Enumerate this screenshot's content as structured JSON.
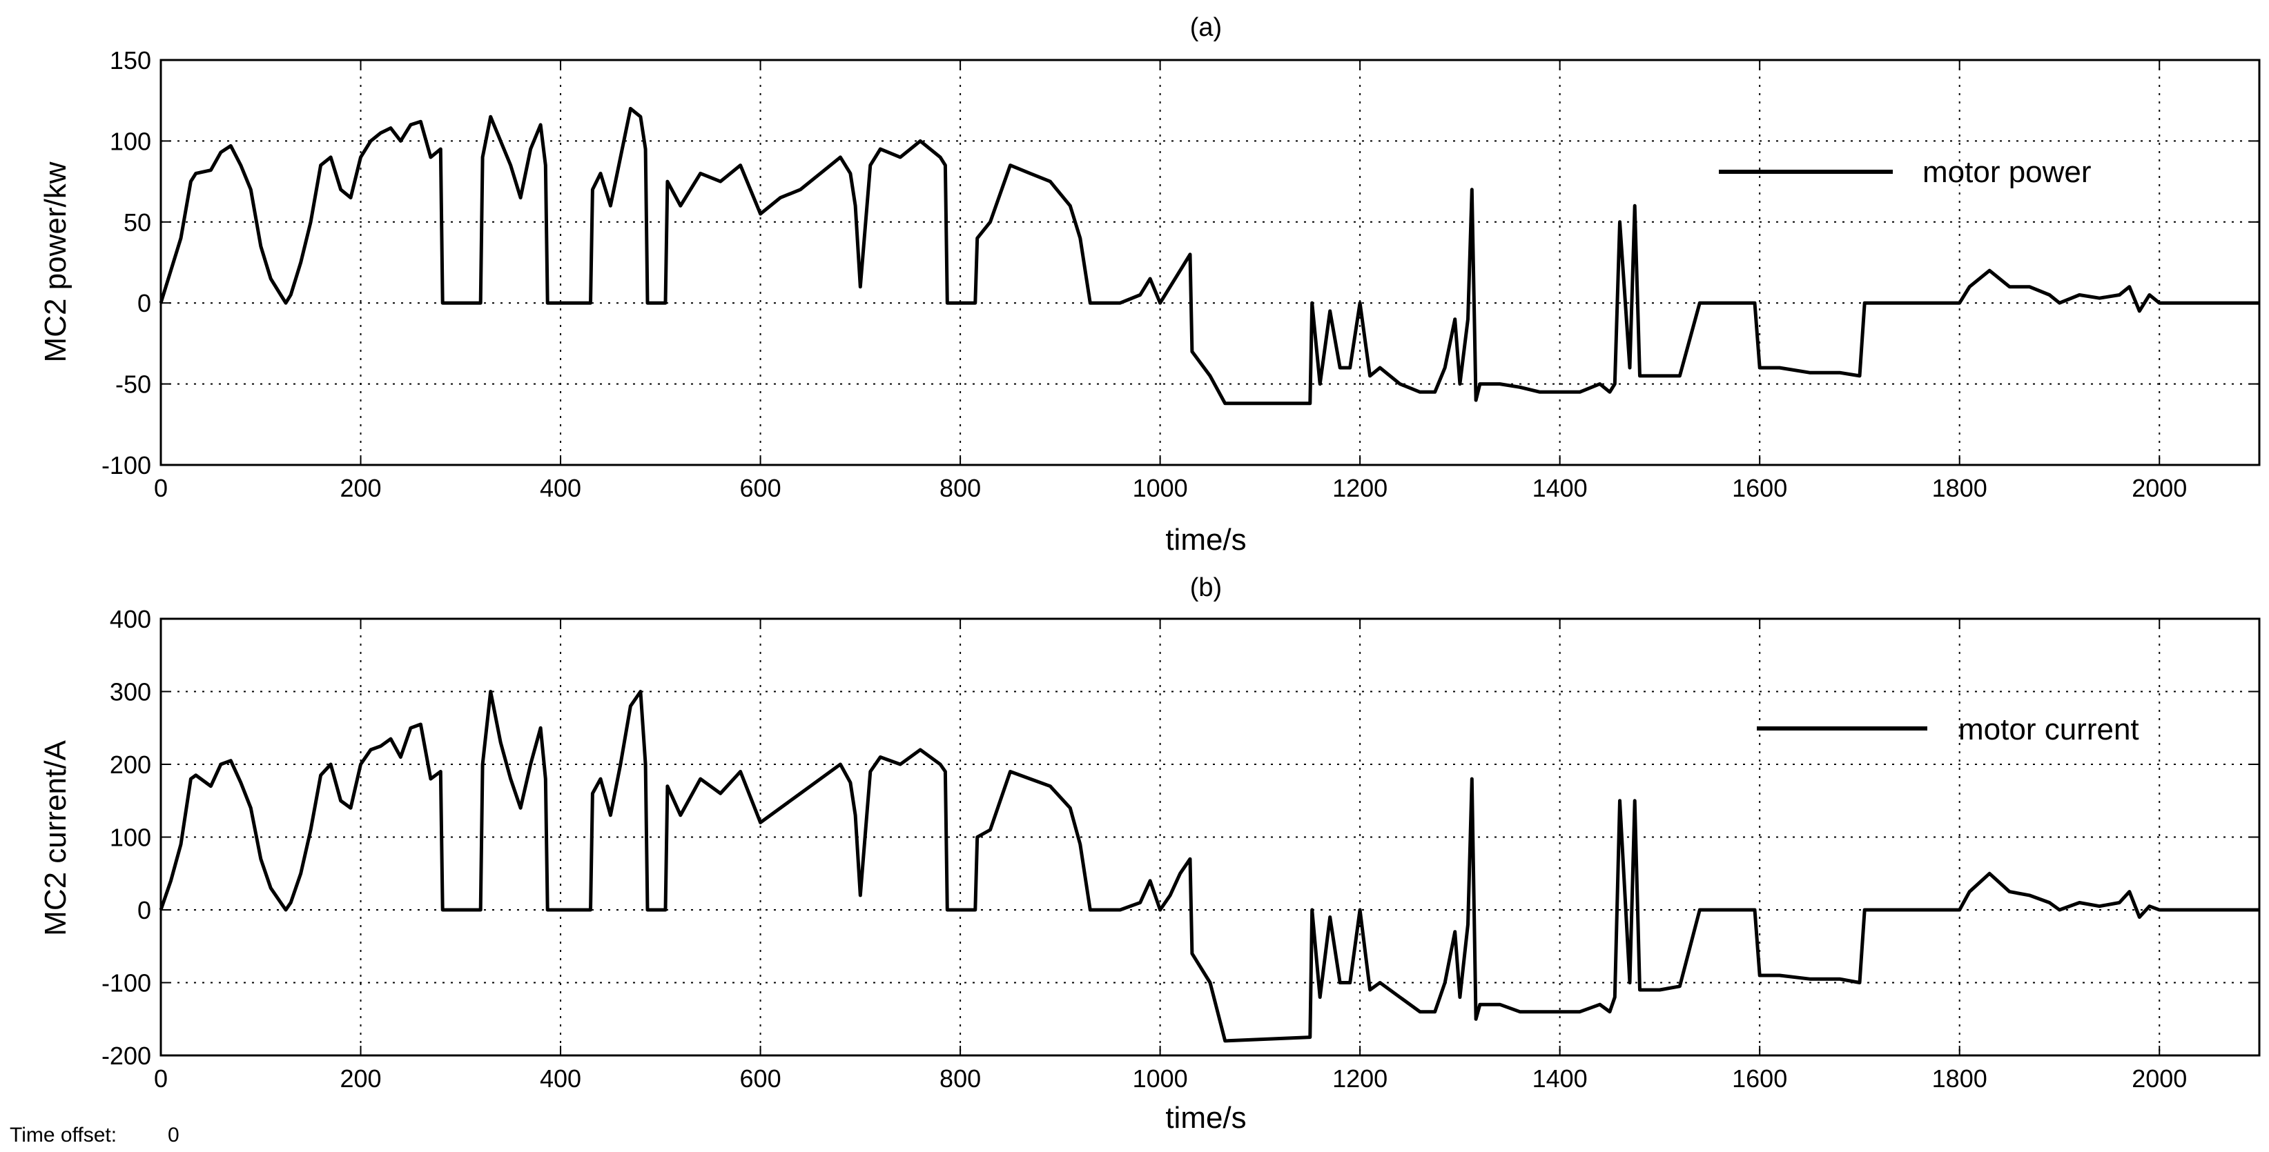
{
  "window": {
    "time_offset_label": "Time offset:",
    "time_offset_value": "0"
  },
  "colors": {
    "background": "#ffffff",
    "axes": "#000000",
    "grid": "#000000",
    "line": "#000000"
  },
  "chart_data": [
    {
      "type": "line",
      "title": "(a)",
      "xlabel": "time/s",
      "ylabel": "MC2 power/kw",
      "xlim": [
        0,
        2100
      ],
      "ylim": [
        -100,
        150
      ],
      "xticks": [
        0,
        200,
        400,
        600,
        800,
        1000,
        1200,
        1400,
        1600,
        1800,
        2000
      ],
      "yticks": [
        -100,
        -50,
        0,
        50,
        100,
        150
      ],
      "grid": true,
      "legend_position": "top-right",
      "series": [
        {
          "name": "motor power",
          "x": [
            0,
            10,
            20,
            30,
            35,
            50,
            60,
            70,
            80,
            90,
            100,
            110,
            120,
            125,
            130,
            140,
            150,
            160,
            170,
            180,
            190,
            200,
            210,
            220,
            230,
            240,
            250,
            260,
            270,
            280,
            282,
            320,
            322,
            330,
            340,
            350,
            360,
            370,
            380,
            385,
            387,
            430,
            432,
            440,
            450,
            460,
            470,
            480,
            485,
            487,
            505,
            507,
            520,
            540,
            560,
            580,
            600,
            620,
            640,
            660,
            680,
            690,
            695,
            700,
            710,
            720,
            740,
            760,
            780,
            785,
            787,
            815,
            817,
            830,
            850,
            870,
            890,
            910,
            920,
            930,
            940,
            960,
            980,
            990,
            1000,
            1010,
            1020,
            1030,
            1032,
            1050,
            1065,
            1150,
            1152,
            1160,
            1170,
            1180,
            1190,
            1200,
            1210,
            1220,
            1240,
            1260,
            1275,
            1285,
            1295,
            1300,
            1308,
            1312,
            1316,
            1320,
            1340,
            1360,
            1380,
            1400,
            1420,
            1440,
            1450,
            1455,
            1460,
            1470,
            1475,
            1480,
            1500,
            1520,
            1540,
            1548,
            1595,
            1600,
            1620,
            1650,
            1680,
            1700,
            1705,
            1800,
            1810,
            1830,
            1850,
            1870,
            1890,
            1900,
            1920,
            1940,
            1960,
            1970,
            1980,
            1990,
            2000,
            2100
          ],
          "y": [
            0,
            20,
            40,
            75,
            80,
            82,
            93,
            97,
            85,
            70,
            35,
            15,
            5,
            0,
            5,
            25,
            50,
            85,
            90,
            70,
            65,
            90,
            100,
            105,
            108,
            100,
            110,
            112,
            90,
            95,
            0,
            0,
            90,
            115,
            100,
            85,
            65,
            95,
            110,
            85,
            0,
            0,
            70,
            80,
            60,
            90,
            120,
            115,
            95,
            0,
            0,
            75,
            60,
            80,
            75,
            85,
            55,
            65,
            70,
            80,
            90,
            80,
            60,
            10,
            85,
            95,
            90,
            100,
            90,
            85,
            0,
            0,
            40,
            50,
            85,
            80,
            75,
            60,
            40,
            0,
            0,
            0,
            5,
            15,
            0,
            10,
            20,
            30,
            -30,
            -45,
            -62,
            -62,
            0,
            -50,
            -5,
            -40,
            -40,
            0,
            -45,
            -40,
            -50,
            -55,
            -55,
            -40,
            -10,
            -50,
            -10,
            70,
            -60,
            -50,
            -50,
            -52,
            -55,
            -55,
            -55,
            -50,
            -55,
            -50,
            50,
            -40,
            60,
            -45,
            -45,
            -45,
            0,
            0,
            0,
            -40,
            -40,
            -43,
            -43,
            -45,
            0,
            0,
            10,
            20,
            10,
            10,
            5,
            0,
            5,
            3,
            5,
            10,
            -5,
            5,
            0,
            0
          ]
        }
      ]
    },
    {
      "type": "line",
      "title": "(b)",
      "xlabel": "time/s",
      "ylabel": "MC2 current/A",
      "xlim": [
        0,
        2100
      ],
      "ylim": [
        -200,
        400
      ],
      "xticks": [
        0,
        200,
        400,
        600,
        800,
        1000,
        1200,
        1400,
        1600,
        1800,
        2000
      ],
      "yticks": [
        -200,
        -100,
        0,
        100,
        200,
        300,
        400
      ],
      "grid": true,
      "legend_position": "top-right",
      "series": [
        {
          "name": "motor current",
          "x": [
            0,
            10,
            20,
            30,
            35,
            50,
            60,
            70,
            80,
            90,
            100,
            110,
            120,
            125,
            130,
            140,
            150,
            160,
            170,
            180,
            190,
            200,
            210,
            220,
            230,
            240,
            250,
            260,
            270,
            280,
            282,
            320,
            322,
            330,
            340,
            350,
            360,
            370,
            380,
            385,
            387,
            430,
            432,
            440,
            450,
            460,
            470,
            480,
            485,
            487,
            505,
            507,
            520,
            540,
            560,
            580,
            600,
            620,
            640,
            660,
            680,
            690,
            695,
            700,
            710,
            720,
            740,
            760,
            780,
            785,
            787,
            815,
            817,
            830,
            850,
            870,
            890,
            910,
            920,
            930,
            940,
            960,
            980,
            990,
            1000,
            1010,
            1020,
            1030,
            1032,
            1050,
            1065,
            1150,
            1152,
            1160,
            1170,
            1180,
            1190,
            1200,
            1210,
            1220,
            1240,
            1260,
            1275,
            1285,
            1295,
            1300,
            1308,
            1312,
            1316,
            1320,
            1340,
            1360,
            1380,
            1400,
            1420,
            1440,
            1450,
            1455,
            1460,
            1470,
            1475,
            1480,
            1500,
            1520,
            1540,
            1548,
            1595,
            1600,
            1620,
            1650,
            1680,
            1700,
            1705,
            1800,
            1810,
            1830,
            1850,
            1870,
            1890,
            1900,
            1920,
            1940,
            1960,
            1970,
            1980,
            1990,
            2000,
            2100
          ],
          "y": [
            0,
            40,
            90,
            180,
            185,
            170,
            200,
            205,
            175,
            140,
            70,
            30,
            10,
            0,
            10,
            50,
            110,
            185,
            200,
            150,
            140,
            200,
            220,
            225,
            235,
            210,
            250,
            255,
            180,
            190,
            0,
            0,
            200,
            300,
            230,
            180,
            140,
            200,
            250,
            180,
            0,
            0,
            160,
            180,
            130,
            200,
            280,
            300,
            200,
            0,
            0,
            170,
            130,
            180,
            160,
            190,
            120,
            140,
            160,
            180,
            200,
            175,
            130,
            20,
            190,
            210,
            200,
            220,
            200,
            190,
            0,
            0,
            100,
            110,
            190,
            180,
            170,
            140,
            90,
            0,
            0,
            0,
            10,
            40,
            0,
            20,
            50,
            70,
            -60,
            -100,
            -180,
            -175,
            0,
            -120,
            -10,
            -100,
            -100,
            0,
            -110,
            -100,
            -120,
            -140,
            -140,
            -100,
            -30,
            -120,
            -20,
            180,
            -150,
            -130,
            -130,
            -140,
            -140,
            -140,
            -140,
            -130,
            -140,
            -120,
            150,
            -100,
            150,
            -110,
            -110,
            -105,
            0,
            0,
            0,
            -90,
            -90,
            -95,
            -95,
            -100,
            0,
            0,
            25,
            50,
            25,
            20,
            10,
            0,
            10,
            5,
            10,
            25,
            -10,
            5,
            0,
            0
          ]
        }
      ]
    }
  ]
}
